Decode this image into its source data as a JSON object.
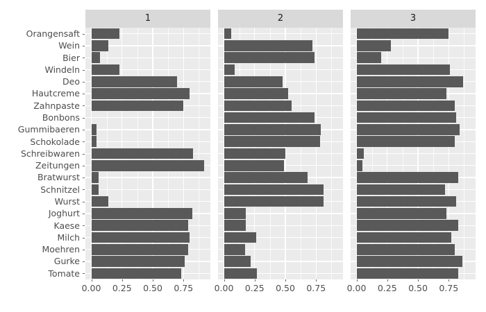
{
  "chart_data": {
    "type": "bar",
    "orientation": "horizontal",
    "title": "",
    "xlabel": "",
    "ylabel": "",
    "facets": [
      "1",
      "2",
      "3"
    ],
    "categories": [
      "Orangensaft",
      "Wein",
      "Bier",
      "Windeln",
      "Deo",
      "Hautcreme",
      "Zahnpaste",
      "Bonbons",
      "Gummibaeren",
      "Schokolade",
      "Schreibwaren",
      "Zeitungen",
      "Bratwurst",
      "Schnitzel",
      "Wurst",
      "Joghurt",
      "Kaese",
      "Milch",
      "Moehren",
      "Gurke",
      "Tomate"
    ],
    "series": [
      {
        "name": "1",
        "values": [
          0.23,
          0.14,
          0.07,
          0.23,
          0.7,
          0.8,
          0.75,
          0.0,
          0.04,
          0.04,
          0.83,
          0.92,
          0.06,
          0.06,
          0.14,
          0.82,
          0.79,
          0.8,
          0.79,
          0.76,
          0.73
        ]
      },
      {
        "name": "2",
        "values": [
          0.06,
          0.72,
          0.74,
          0.09,
          0.48,
          0.52,
          0.55,
          0.74,
          0.79,
          0.78,
          0.5,
          0.49,
          0.68,
          0.81,
          0.81,
          0.18,
          0.18,
          0.26,
          0.17,
          0.22,
          0.27
        ]
      },
      {
        "name": "3",
        "values": [
          0.75,
          0.28,
          0.2,
          0.76,
          0.87,
          0.73,
          0.8,
          0.81,
          0.84,
          0.8,
          0.06,
          0.05,
          0.83,
          0.72,
          0.81,
          0.73,
          0.83,
          0.77,
          0.8,
          0.86,
          0.83
        ]
      }
    ],
    "x_ticks": [
      "0.00",
      "0.25",
      "0.50",
      "0.75"
    ],
    "x_tick_values": [
      0.0,
      0.25,
      0.5,
      0.75
    ],
    "x_minor_values": [
      0.125,
      0.375,
      0.625,
      0.875
    ],
    "xlim": [
      -0.048,
      0.97
    ],
    "grid": true,
    "legend": false,
    "colors": {
      "bar": "#595959",
      "panel_bg": "#ebebeb",
      "strip_bg": "#d9d9d9",
      "strip_text": "#1a1a1a",
      "grid_line": "#ffffff",
      "axis_text": "#4d4d4d",
      "tick_mark": "#666666",
      "background": "#ffffff"
    }
  }
}
